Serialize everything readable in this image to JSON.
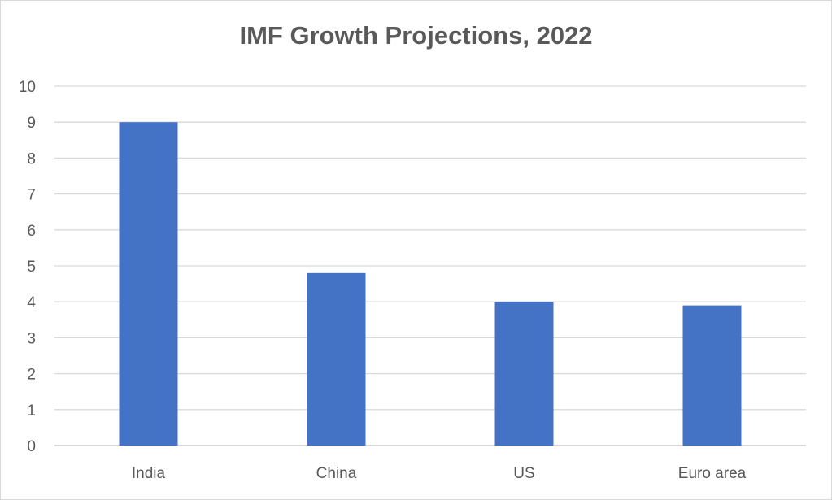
{
  "chart_data": {
    "type": "bar",
    "title": "IMF Growth Projections, 2022",
    "categories": [
      "India",
      "China",
      "US",
      "Euro area"
    ],
    "values": [
      9,
      4.8,
      4.0,
      3.9
    ],
    "xlabel": "",
    "ylabel": "",
    "ylim": [
      0,
      10
    ],
    "yticks": [
      0,
      1,
      2,
      3,
      4,
      5,
      6,
      7,
      8,
      9,
      10
    ],
    "grid": true,
    "legend": "none",
    "bar_color": "#4472c4"
  }
}
